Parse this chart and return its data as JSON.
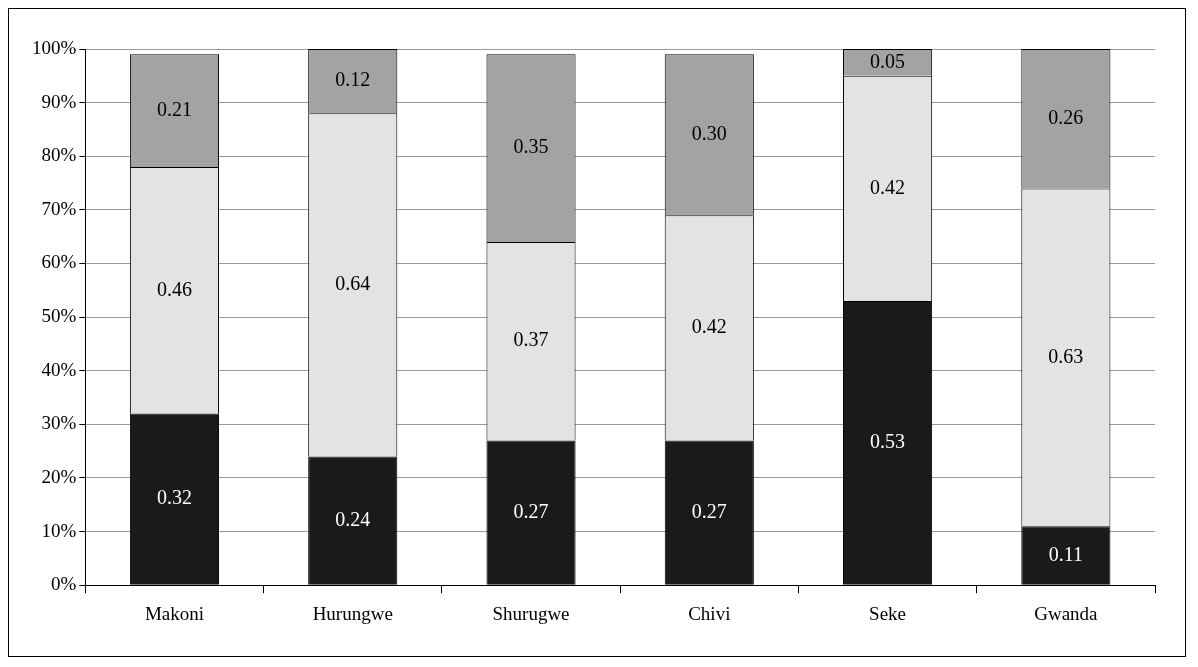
{
  "chart_data": {
    "type": "bar",
    "stacked": true,
    "categories": [
      "Makoni",
      "Hurungwe",
      "Shurugwe",
      "Chivi",
      "Seke",
      "Gwanda"
    ],
    "series": [
      {
        "color": "#1a1a1a",
        "values": [
          0.32,
          0.24,
          0.27,
          0.27,
          0.53,
          0.11
        ],
        "value_labels": [
          "0.32",
          "0.24",
          "0.27",
          "0.27",
          "0.53",
          "0.11"
        ]
      },
      {
        "color": "#e3e3e3",
        "values": [
          0.46,
          0.64,
          0.37,
          0.42,
          0.42,
          0.63
        ],
        "value_labels": [
          "0.46",
          "0.64",
          "0.37",
          "0.42",
          "0.42",
          "0.63"
        ]
      },
      {
        "color": "#a3a3a3",
        "values": [
          0.21,
          0.12,
          0.35,
          0.3,
          0.05,
          0.26
        ],
        "value_labels": [
          "0.21",
          "0.12",
          "0.35",
          "0.30",
          "0.05",
          "0.26"
        ]
      }
    ],
    "ylim": [
      0,
      1
    ],
    "yticks": [
      {
        "value": 0,
        "label": "0%"
      },
      {
        "value": 0.1,
        "label": "10%"
      },
      {
        "value": 0.2,
        "label": "20%"
      },
      {
        "value": 0.3,
        "label": "30%"
      },
      {
        "value": 0.4,
        "label": "40%"
      },
      {
        "value": 0.5,
        "label": "50%"
      },
      {
        "value": 0.6,
        "label": "60%"
      },
      {
        "value": 0.7,
        "label": "70%"
      },
      {
        "value": 0.8,
        "label": "80%"
      },
      {
        "value": 0.9,
        "label": "90%"
      },
      {
        "value": 1,
        "label": "100%"
      }
    ],
    "grid": "y",
    "legend": false
  }
}
